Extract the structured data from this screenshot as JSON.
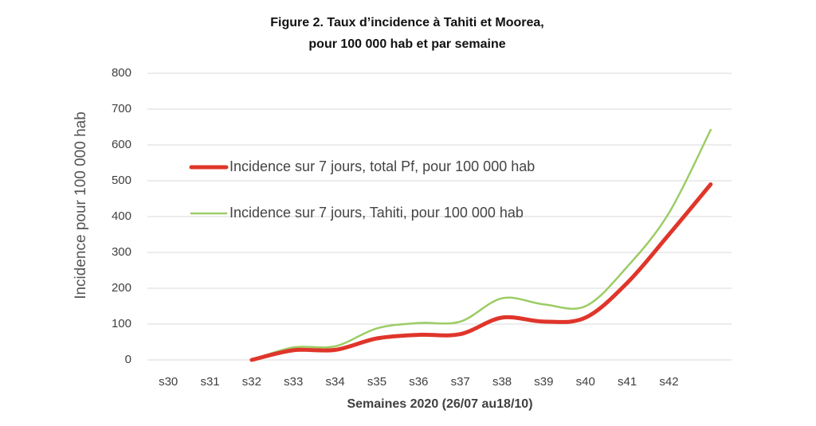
{
  "chart_data": {
    "type": "line",
    "title": [
      "Figure 2. Taux d’incidence à Tahiti et Moorea,",
      "pour 100 000 hab et par semaine"
    ],
    "x_label": "Semaines 2020 (26/07 au18/10)",
    "y_label": "Incidence pour 100 000 hab",
    "categories": [
      "s30",
      "s31",
      "s32",
      "s33",
      "s34",
      "s35",
      "s36",
      "s37",
      "s38",
      "s39",
      "s40",
      "s41",
      "s42",
      null
    ],
    "series": [
      {
        "name": "Incidence sur 7 jours, total Pf, pour 100 000 hab",
        "color": "#e0352b",
        "width": 5,
        "values": [
          null,
          null,
          0,
          27,
          28,
          60,
          70,
          72,
          118,
          107,
          118,
          215,
          350,
          490
        ]
      },
      {
        "name": "Incidence sur 7 jours, Tahiti, pour 100 000 hab",
        "color": "#9ccc65",
        "width": 2.5,
        "values": [
          null,
          null,
          0,
          35,
          38,
          88,
          103,
          107,
          172,
          155,
          150,
          260,
          410,
          642
        ]
      }
    ],
    "ylim": [
      0,
      800
    ],
    "yticks": [
      0,
      100,
      200,
      300,
      400,
      500,
      600,
      700,
      800
    ],
    "grid": true,
    "legend": "left"
  }
}
